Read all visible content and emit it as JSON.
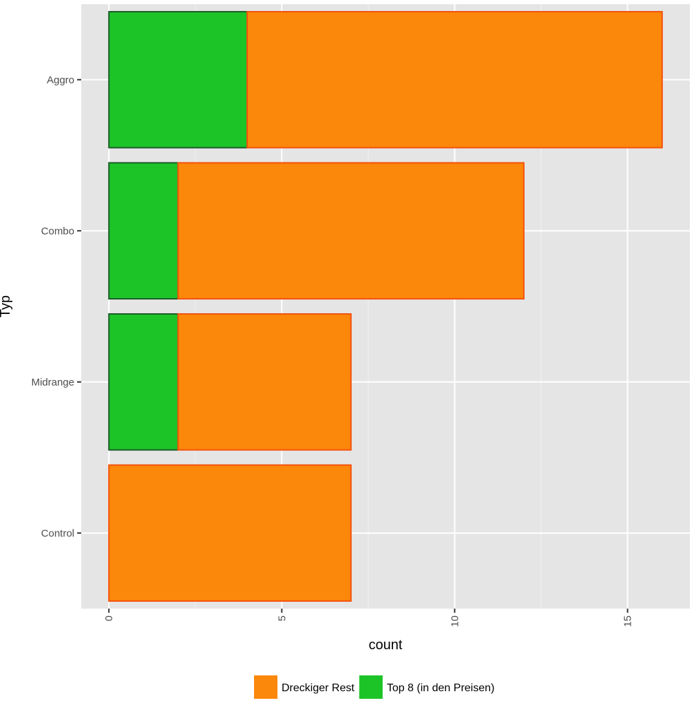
{
  "chart_data": {
    "type": "bar",
    "orientation": "horizontal",
    "stacked": true,
    "categories": [
      "Aggro",
      "Combo",
      "Midrange",
      "Control"
    ],
    "series": [
      {
        "name": "Top 8 (in den Preisen)",
        "values": [
          4,
          2,
          2,
          0
        ],
        "color": "#1dc428",
        "border": "#1a5c28"
      },
      {
        "name": "Dreckiger Rest",
        "values": [
          12,
          10,
          5,
          7
        ],
        "color": "#fb870b",
        "border": "#f4520c"
      }
    ],
    "xlabel": "count",
    "ylabel": "Typ",
    "xlim": [
      -0.8,
      16.8
    ],
    "xticks": [
      0,
      5,
      10,
      15
    ],
    "xtick_labels": [
      "0",
      "5",
      "10",
      "15"
    ],
    "grid": true,
    "legend": {
      "position": "bottom",
      "items": [
        {
          "label": "Dreckiger Rest",
          "color": "#fb870b"
        },
        {
          "label": "Top 8 (in den Preisen)",
          "color": "#1dc428"
        }
      ]
    },
    "panel_background": "#e5e5e5"
  }
}
